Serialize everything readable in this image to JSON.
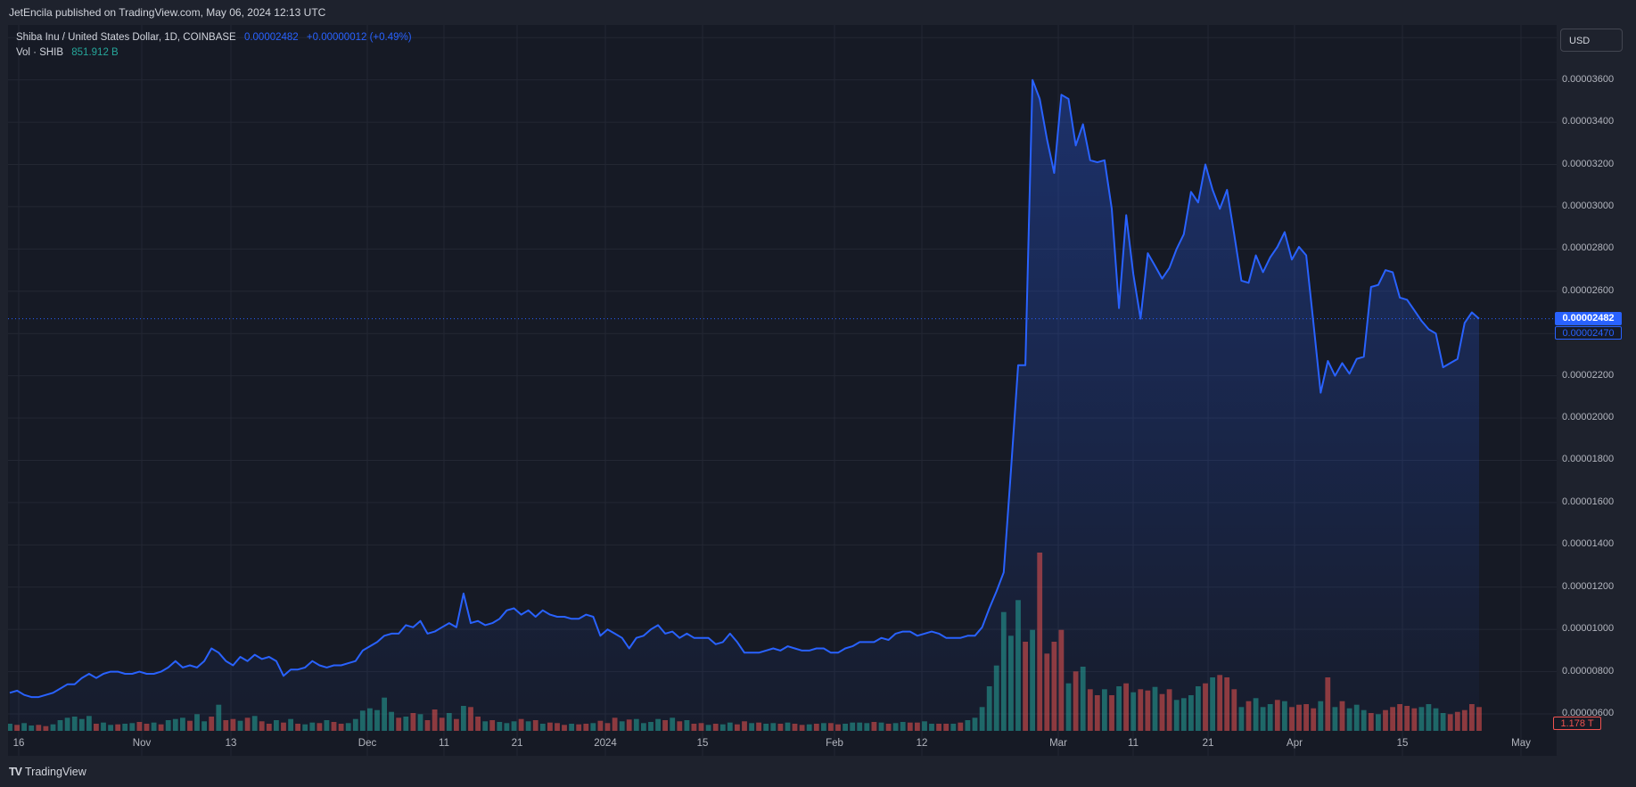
{
  "header": {
    "published_by": "JetEncila published on TradingView.com, May 06, 2024 12:13 UTC"
  },
  "legend": {
    "symbol": "Shiba Inu / United States Dollar, 1D, COINBASE",
    "last_price": "0.00002482",
    "change": "+0.00000012 (+0.49%)",
    "volume_label": "Vol · SHIB",
    "volume_value": "851.912 B"
  },
  "currency_button": "USD",
  "price_tags": {
    "last": "0.00002482",
    "previous": "0.00002470",
    "volume": "1.178 T"
  },
  "footer": {
    "brand": "TradingView"
  },
  "colors": {
    "line": "#2962ff",
    "up": "#26a69a",
    "down": "#ef5350",
    "background": "#161a25"
  },
  "chart_data": {
    "type": "area",
    "title": "Shiba Inu / United States Dollar, 1D, COINBASE",
    "y_ticks": [
      "0.00003800",
      "0.00003600",
      "0.00003400",
      "0.00003200",
      "0.00003000",
      "0.00002800",
      "0.00002600",
      "0.00002400",
      "0.00002200",
      "0.00002000",
      "0.00001800",
      "0.00001600",
      "0.00001400",
      "0.00001200",
      "0.00001000",
      "0.00000800",
      "0.00000600"
    ],
    "x_ticks": [
      "16",
      "Nov",
      "13",
      "Dec",
      "11",
      "21",
      "2024",
      "15",
      "Feb",
      "12",
      "Mar",
      "11",
      "21",
      "Apr",
      "15",
      "May"
    ],
    "ylim": [
      5.2e-06,
      3.86e-05
    ],
    "grid": true,
    "series": [
      {
        "values": [
          7e-06,
          7.1e-06,
          6.9e-06,
          6.8e-06,
          6.8e-06,
          6.9e-06,
          7e-06,
          7.2e-06,
          7.4e-06,
          7.4e-06,
          7.7e-06,
          7.9e-06,
          7.7e-06,
          7.9e-06,
          8e-06,
          8e-06,
          7.9e-06,
          7.9e-06,
          8e-06,
          7.9e-06,
          7.9e-06,
          8e-06,
          8.2e-06,
          8.5e-06,
          8.2e-06,
          8.3e-06,
          8.2e-06,
          8.5e-06,
          9.1e-06,
          8.9e-06,
          8.5e-06,
          8.3e-06,
          8.7e-06,
          8.5e-06,
          8.8e-06,
          8.6e-06,
          8.7e-06,
          8.5e-06,
          7.8e-06,
          8.1e-06,
          8.1e-06,
          8.2e-06,
          8.5e-06,
          8.3e-06,
          8.2e-06,
          8.3e-06,
          8.3e-06,
          8.4e-06,
          8.5e-06,
          9e-06,
          9.2e-06,
          9.4e-06,
          9.7e-06,
          9.8e-06,
          9.8e-06,
          1.02e-05,
          1.01e-05,
          1.04e-05,
          9.8e-06,
          9.9e-06,
          1.01e-05,
          1.03e-05,
          1.01e-05,
          1.17e-05,
          1.03e-05,
          1.04e-05,
          1.02e-05,
          1.03e-05,
          1.05e-05,
          1.09e-05,
          1.1e-05,
          1.07e-05,
          1.09e-05,
          1.06e-05,
          1.09e-05,
          1.07e-05,
          1.06e-05,
          1.06e-05,
          1.05e-05,
          1.05e-05,
          1.07e-05,
          1.06e-05,
          9.7e-06,
          1e-05,
          9.8e-06,
          9.6e-06,
          9.1e-06,
          9.6e-06,
          9.7e-06,
          1e-05,
          1.02e-05,
          9.8e-06,
          9.9e-06,
          9.6e-06,
          9.8e-06,
          9.6e-06,
          9.6e-06,
          9.6e-06,
          9.3e-06,
          9.4e-06,
          9.8e-06,
          9.4e-06,
          8.9e-06,
          8.9e-06,
          8.9e-06,
          9e-06,
          9.1e-06,
          9e-06,
          9.2e-06,
          9.1e-06,
          9e-06,
          9e-06,
          9.1e-06,
          9.1e-06,
          8.9e-06,
          8.9e-06,
          9.1e-06,
          9.2e-06,
          9.4e-06,
          9.4e-06,
          9.4e-06,
          9.6e-06,
          9.5e-06,
          9.8e-06,
          9.9e-06,
          9.9e-06,
          9.7e-06,
          9.8e-06,
          9.9e-06,
          9.8e-06,
          9.6e-06,
          9.6e-06,
          9.6e-06,
          9.7e-06,
          9.7e-06,
          1.01e-05,
          1.1e-05,
          1.18e-05,
          1.27e-05,
          1.75e-05,
          2.25e-05,
          2.25e-05,
          3.6e-05,
          3.51e-05,
          3.32e-05,
          3.16e-05,
          3.53e-05,
          3.51e-05,
          3.29e-05,
          3.39e-05,
          3.22e-05,
          3.21e-05,
          3.22e-05,
          2.99e-05,
          2.52e-05,
          2.96e-05,
          2.68e-05,
          2.47e-05,
          2.78e-05,
          2.72e-05,
          2.66e-05,
          2.71e-05,
          2.8e-05,
          2.87e-05,
          3.07e-05,
          3.02e-05,
          3.2e-05,
          3.08e-05,
          2.99e-05,
          3.08e-05,
          2.87e-05,
          2.65e-05,
          2.64e-05,
          2.77e-05,
          2.69e-05,
          2.76e-05,
          2.81e-05,
          2.88e-05,
          2.75e-05,
          2.81e-05,
          2.77e-05,
          2.45e-05,
          2.12e-05,
          2.27e-05,
          2.2e-05,
          2.26e-05,
          2.21e-05,
          2.28e-05,
          2.29e-05,
          2.62e-05,
          2.63e-05,
          2.7e-05,
          2.69e-05,
          2.57e-05,
          2.56e-05,
          2.51e-05,
          2.46e-05,
          2.42e-05,
          2.4e-05,
          2.24e-05,
          2.26e-05,
          2.28e-05,
          2.45e-05,
          2.5e-05,
          2.47e-05
        ]
      }
    ],
    "volume": {
      "values": [
        12,
        10,
        13,
        9,
        10,
        8,
        11,
        18,
        22,
        24,
        20,
        25,
        12,
        14,
        10,
        11,
        12,
        13,
        15,
        12,
        14,
        11,
        18,
        20,
        22,
        17,
        28,
        16,
        24,
        44,
        18,
        20,
        17,
        22,
        25,
        16,
        12,
        18,
        14,
        20,
        12,
        11,
        14,
        13,
        18,
        15,
        12,
        13,
        20,
        34,
        38,
        35,
        56,
        32,
        22,
        24,
        30,
        28,
        18,
        36,
        22,
        30,
        20,
        42,
        40,
        24,
        16,
        18,
        15,
        13,
        16,
        20,
        16,
        18,
        12,
        14,
        13,
        10,
        12,
        11,
        12,
        13,
        17,
        13,
        22,
        16,
        19,
        20,
        13,
        15,
        20,
        18,
        22,
        16,
        18,
        12,
        13,
        10,
        12,
        11,
        14,
        11,
        16,
        13,
        14,
        12,
        13,
        12,
        14,
        12,
        10,
        11,
        12,
        13,
        13,
        11,
        12,
        14,
        14,
        13,
        15,
        14,
        12,
        13,
        15,
        14,
        14,
        16,
        12,
        12,
        12,
        12,
        14,
        18,
        22,
        40,
        75,
        110,
        200,
        160,
        220,
        150,
        170,
        300,
        130,
        150,
        170,
        80,
        100,
        108,
        70,
        60,
        70,
        60,
        75,
        80,
        65,
        70,
        68,
        74,
        62,
        70,
        52,
        55,
        60,
        75,
        80,
        90,
        94,
        90,
        70,
        40,
        50,
        55,
        40,
        45,
        52,
        50,
        40,
        44,
        45,
        38,
        50,
        90,
        40,
        50,
        38,
        44,
        35,
        30,
        28,
        35,
        40,
        45,
        42,
        38,
        40,
        45,
        38,
        30,
        28,
        32,
        35,
        45,
        40,
        38,
        36,
        30
      ],
      "colors_up": [
        true,
        false,
        true,
        true,
        false,
        false,
        true,
        true,
        true,
        true,
        true,
        true,
        false,
        true,
        true,
        false,
        true,
        true,
        false,
        false,
        true,
        false,
        true,
        true,
        true,
        false,
        true,
        true,
        false,
        true,
        false,
        false,
        true,
        false,
        true,
        false,
        false,
        true,
        false,
        true,
        false,
        true,
        true,
        false,
        true,
        false,
        false,
        true,
        true,
        true,
        true,
        true,
        true,
        true,
        false,
        true,
        false,
        true,
        false,
        false,
        false,
        true,
        false,
        true,
        false,
        false,
        true,
        false,
        true,
        true,
        true,
        false,
        true,
        false,
        true,
        false,
        false,
        false,
        true,
        false,
        false,
        true,
        false,
        false,
        false,
        true,
        false,
        true,
        true,
        true,
        true,
        false,
        true,
        false,
        true,
        false,
        false,
        true,
        false,
        true,
        true,
        false,
        false,
        true,
        false,
        true,
        true,
        false,
        true,
        false,
        false,
        true,
        false,
        true,
        false,
        false,
        true,
        true,
        true,
        true,
        false,
        true,
        false,
        true,
        true,
        false,
        false,
        true,
        true,
        false,
        false,
        true,
        false,
        true,
        true,
        true,
        true,
        true,
        true,
        true,
        true,
        false,
        true,
        false,
        false,
        false,
        false,
        true,
        false,
        true,
        false,
        false,
        true,
        false,
        true,
        false,
        true,
        false,
        false,
        true,
        false,
        false,
        true,
        true,
        true,
        true,
        false,
        true,
        false,
        false,
        false,
        true,
        false,
        true,
        true,
        true,
        false,
        true,
        false,
        false,
        false,
        false,
        true,
        false,
        true,
        false,
        true,
        true,
        true,
        false,
        true,
        false,
        false,
        false,
        false,
        false,
        true,
        true,
        true,
        true,
        false
      ]
    }
  }
}
